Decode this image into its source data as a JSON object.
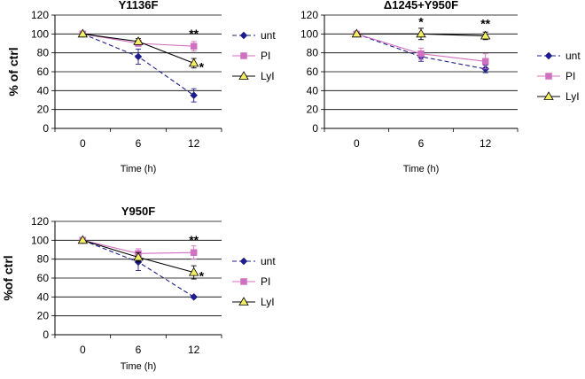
{
  "chart_data": [
    {
      "type": "line",
      "title": "Y1136F",
      "xlabel": "Time (h)",
      "ylabel": "% of ctrl",
      "categories": [
        "0",
        "6",
        "12"
      ],
      "ylim": [
        0,
        120
      ],
      "yticks": [
        0,
        20,
        40,
        60,
        80,
        100,
        120
      ],
      "grid": true,
      "legend_position": "right",
      "series": [
        {
          "name": "unt",
          "values": [
            100,
            76,
            35
          ],
          "errors": [
            0,
            8,
            7
          ],
          "color": "#1c1c8c",
          "dash": "dashed",
          "marker": "diamond"
        },
        {
          "name": "PI",
          "values": [
            100,
            90,
            87
          ],
          "errors": [
            0,
            3,
            5
          ],
          "color": "#d070c0",
          "dash": "solid",
          "marker": "square"
        },
        {
          "name": "LyI",
          "values": [
            100,
            92,
            69
          ],
          "errors": [
            0,
            3,
            5
          ],
          "color": "#000000",
          "dash": "solid",
          "marker": "triangle"
        }
      ],
      "annotations": [
        {
          "text": "**",
          "x": "12",
          "y": 87
        },
        {
          "text": "*",
          "x": "12",
          "y": 69
        }
      ]
    },
    {
      "type": "line",
      "title": "Δ1245+Y950F",
      "xlabel": "Time (h)",
      "ylabel": "",
      "categories": [
        "0",
        "6",
        "12"
      ],
      "ylim": [
        0,
        120
      ],
      "yticks": [
        0,
        20,
        40,
        60,
        80,
        100,
        120
      ],
      "grid": true,
      "legend_position": "right",
      "series": [
        {
          "name": "unt",
          "values": [
            100,
            76,
            63
          ],
          "errors": [
            0,
            5,
            4
          ],
          "color": "#1c1c8c",
          "dash": "dashed",
          "marker": "diamond"
        },
        {
          "name": "PI",
          "values": [
            100,
            79,
            71
          ],
          "errors": [
            0,
            6,
            8
          ],
          "color": "#d070c0",
          "dash": "solid",
          "marker": "square"
        },
        {
          "name": "LyI",
          "values": [
            100,
            100,
            98
          ],
          "errors": [
            0,
            6,
            4
          ],
          "color": "#000000",
          "dash": "solid",
          "marker": "triangle"
        }
      ],
      "annotations": [
        {
          "text": "*",
          "x": "6",
          "y": 100
        },
        {
          "text": "**",
          "x": "12",
          "y": 98
        }
      ]
    },
    {
      "type": "line",
      "title": "Y950F",
      "xlabel": "Time (h)",
      "ylabel": "%of ctrl",
      "categories": [
        "0",
        "6",
        "12"
      ],
      "ylim": [
        0,
        120
      ],
      "yticks": [
        0,
        20,
        40,
        60,
        80,
        100,
        120
      ],
      "grid": true,
      "legend_position": "right",
      "series": [
        {
          "name": "unt",
          "values": [
            100,
            77,
            40
          ],
          "errors": [
            0,
            9,
            1
          ],
          "color": "#1c1c8c",
          "dash": "dashed",
          "marker": "diamond"
        },
        {
          "name": "PI",
          "values": [
            100,
            86,
            87
          ],
          "errors": [
            0,
            5,
            7
          ],
          "color": "#d070c0",
          "dash": "solid",
          "marker": "square"
        },
        {
          "name": "LyI",
          "values": [
            100,
            82,
            66
          ],
          "errors": [
            0,
            5,
            7
          ],
          "color": "#000000",
          "dash": "solid",
          "marker": "triangle"
        }
      ],
      "annotations": [
        {
          "text": "**",
          "x": "12",
          "y": 87
        },
        {
          "text": "*",
          "x": "12",
          "y": 66
        }
      ]
    }
  ]
}
